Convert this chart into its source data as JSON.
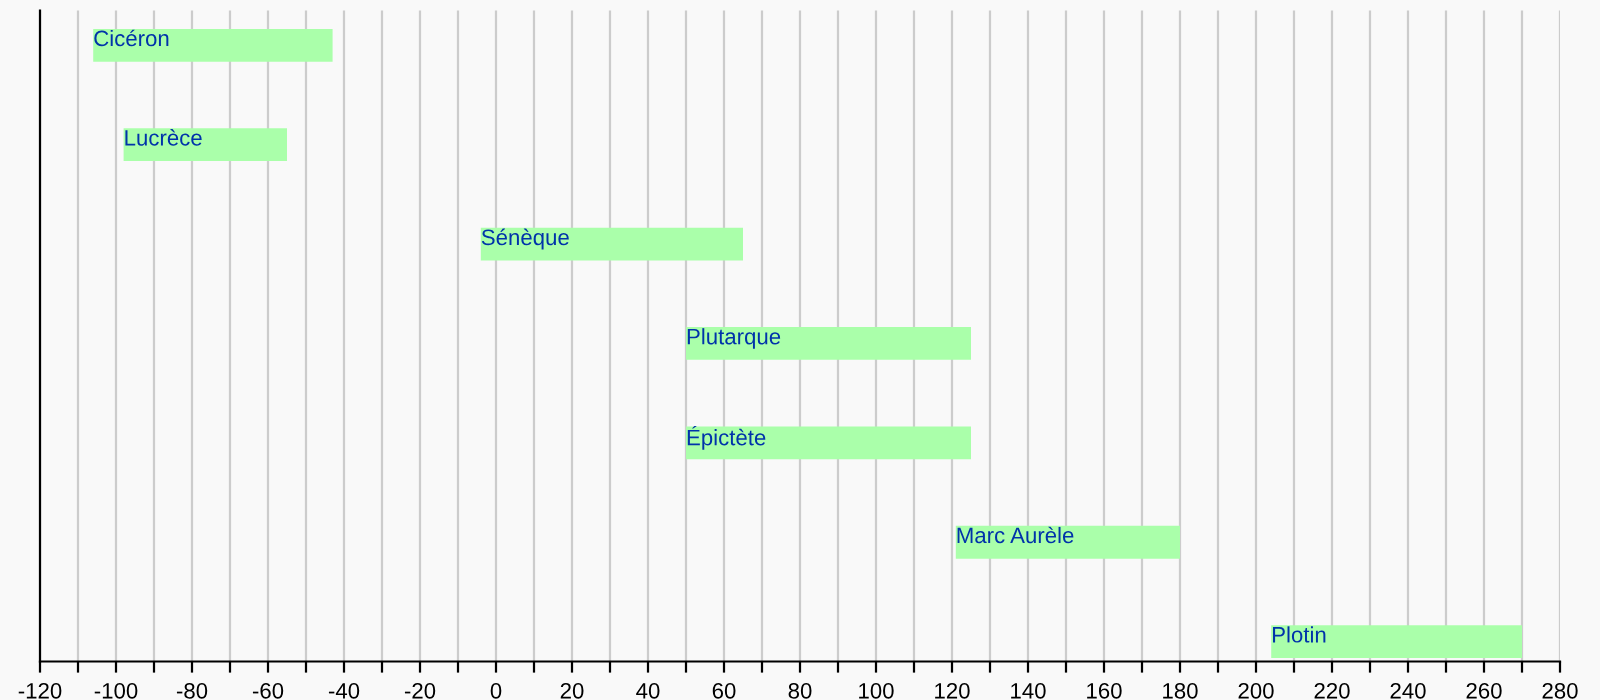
{
  "chart_data": {
    "type": "bar",
    "orientation": "horizontal",
    "categories": [
      "Cicéron",
      "Lucrèce",
      "Sénèque",
      "Plutarque",
      "Épictète",
      "Marc Aurèle",
      "Plotin"
    ],
    "base": [
      -106,
      -98,
      -4,
      50,
      50,
      121,
      204
    ],
    "values": [
      63,
      43,
      69,
      75,
      75,
      59,
      66
    ],
    "color": "#aaffaa",
    "xlim": [
      -120,
      280
    ],
    "xticks": [
      -120,
      {
        "value": -110,
        "label": null
      },
      -100,
      {
        "value": -90,
        "label": null
      },
      -80,
      {
        "value": -70,
        "label": null
      },
      -60,
      {
        "value": -50,
        "label": null
      },
      -40,
      {
        "value": -30,
        "label": null
      },
      -20,
      {
        "value": -10,
        "label": null
      },
      0,
      {
        "value": 10,
        "label": null
      },
      20,
      {
        "value": 30,
        "label": null
      },
      40,
      {
        "value": 50,
        "label": null
      },
      60,
      {
        "value": 70,
        "label": null
      },
      80,
      {
        "value": 90,
        "label": null
      },
      100,
      {
        "value": 110,
        "label": null
      },
      120,
      {
        "value": 130,
        "label": null
      },
      140,
      {
        "value": 150,
        "label": null
      },
      160,
      {
        "value": 170,
        "label": null
      },
      180,
      {
        "value": 190,
        "label": null
      },
      200,
      {
        "value": 210,
        "label": null
      },
      220,
      {
        "value": 230,
        "label": null
      },
      240,
      {
        "value": 250,
        "label": null
      },
      260,
      {
        "value": 270,
        "label": null
      },
      280
    ],
    "grid": "x",
    "tick_labels": "x"
  }
}
